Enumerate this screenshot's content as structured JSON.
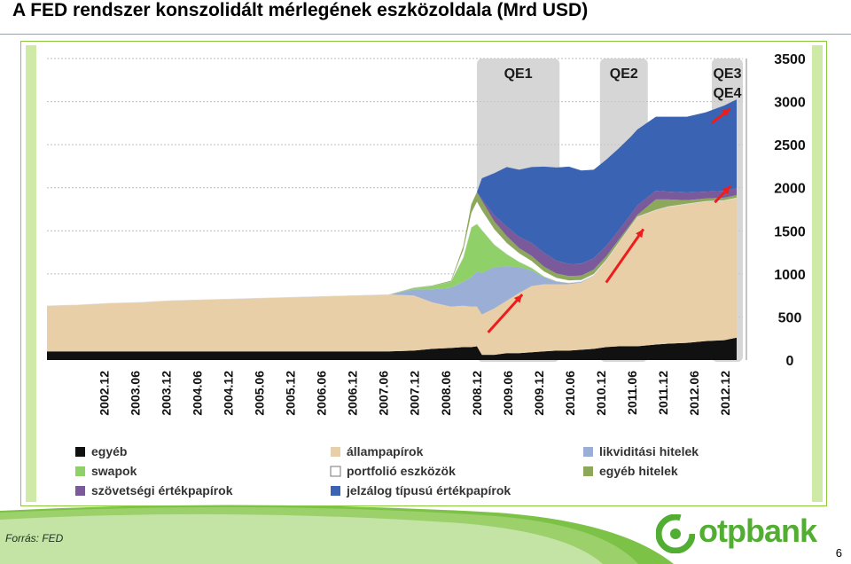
{
  "slide": {
    "title": "A FED rendszer konszolidált mérlegének eszközoldala (Mrd USD)",
    "source": "Forrás: FED",
    "page_number": "6",
    "logo_text": "otpbank"
  },
  "colors": {
    "accent_green": "#52ae32",
    "frame_green": "#8dc63f",
    "qe_band": "#c8c8c8",
    "arrow": "#ee1c1c"
  },
  "chart_data": {
    "type": "area",
    "stacked": true,
    "y_axis_side": "right",
    "ylim": [
      0,
      3500
    ],
    "yticks": [
      0,
      500,
      1000,
      1500,
      2000,
      2500,
      3000,
      3500
    ],
    "x_range": [
      2002.0,
      2013.2
    ],
    "xtick_labels": [
      "2002.12",
      "2003.06",
      "2003.12",
      "2004.06",
      "2004.12",
      "2005.06",
      "2005.12",
      "2006.06",
      "2006.12",
      "2007.06",
      "2007.12",
      "2008.06",
      "2008.12",
      "2009.06",
      "2009.12",
      "2010.06",
      "2010.12",
      "2011.06",
      "2011.12",
      "2012.06",
      "2012.12"
    ],
    "xticks": [
      2002.917,
      2003.417,
      2003.917,
      2004.417,
      2004.917,
      2005.417,
      2005.917,
      2006.417,
      2006.917,
      2007.417,
      2007.917,
      2008.417,
      2008.917,
      2009.417,
      2009.917,
      2010.417,
      2010.917,
      2011.417,
      2011.917,
      2012.417,
      2012.917
    ],
    "x": [
      2002.0,
      2002.5,
      2003.0,
      2003.5,
      2004.0,
      2004.5,
      2005.0,
      2005.5,
      2006.0,
      2006.5,
      2007.0,
      2007.5,
      2007.9,
      2008.2,
      2008.5,
      2008.7,
      2008.83,
      2008.92,
      2009.0,
      2009.2,
      2009.4,
      2009.6,
      2009.8,
      2010.0,
      2010.2,
      2010.4,
      2010.6,
      2010.8,
      2011.0,
      2011.2,
      2011.4,
      2011.5,
      2011.8,
      2012.0,
      2012.3,
      2012.6,
      2012.9,
      2013.1
    ],
    "series": [
      {
        "name": "egyéb",
        "color": "#111111",
        "values": [
          100,
          100,
          100,
          100,
          100,
          100,
          100,
          100,
          100,
          100,
          100,
          100,
          110,
          130,
          140,
          150,
          150,
          160,
          60,
          60,
          80,
          80,
          90,
          100,
          110,
          110,
          120,
          130,
          150,
          160,
          160,
          160,
          180,
          190,
          200,
          220,
          230,
          260
        ]
      },
      {
        "name": "állampapírok",
        "color": "#e8cfa8",
        "values": [
          530,
          540,
          560,
          570,
          590,
          600,
          610,
          620,
          630,
          640,
          650,
          660,
          640,
          540,
          480,
          480,
          470,
          460,
          470,
          540,
          610,
          700,
          770,
          780,
          770,
          770,
          780,
          850,
          1000,
          1200,
          1400,
          1500,
          1560,
          1590,
          1610,
          1620,
          1620,
          1620
        ]
      },
      {
        "name": "likviditási hitelek",
        "color": "#9aaed6",
        "values": [
          0,
          0,
          0,
          0,
          0,
          0,
          0,
          0,
          0,
          0,
          0,
          0,
          70,
          150,
          220,
          280,
          340,
          410,
          480,
          480,
          400,
          300,
          180,
          80,
          30,
          15,
          10,
          5,
          5,
          0,
          0,
          0,
          0,
          0,
          0,
          0,
          0,
          0
        ]
      },
      {
        "name": "swapok",
        "color": "#8fd168",
        "values": [
          0,
          0,
          0,
          0,
          0,
          0,
          0,
          0,
          0,
          0,
          0,
          0,
          20,
          40,
          70,
          280,
          580,
          550,
          500,
          260,
          140,
          60,
          30,
          10,
          5,
          0,
          0,
          0,
          0,
          0,
          0,
          0,
          0,
          0,
          0,
          0,
          0,
          0
        ]
      },
      {
        "name": "portfolió eszközök",
        "color": "#ffffff",
        "values": [
          0,
          0,
          0,
          0,
          0,
          0,
          0,
          0,
          0,
          0,
          0,
          0,
          0,
          0,
          0,
          90,
          170,
          260,
          230,
          180,
          130,
          100,
          80,
          60,
          40,
          30,
          20,
          15,
          10,
          5,
          5,
          5,
          5,
          5,
          5,
          5,
          5,
          5
        ]
      },
      {
        "name": "egyéb hitelek",
        "color": "#8da85a",
        "values": [
          0,
          0,
          0,
          0,
          0,
          0,
          0,
          0,
          0,
          0,
          0,
          0,
          0,
          5,
          10,
          40,
          100,
          110,
          110,
          90,
          80,
          60,
          60,
          55,
          50,
          50,
          50,
          50,
          40,
          30,
          20,
          20,
          120,
          80,
          40,
          30,
          30,
          30
        ]
      },
      {
        "name": "szövetségi értékpapírok",
        "color": "#7a5a9a",
        "values": [
          0,
          0,
          0,
          0,
          0,
          0,
          0,
          0,
          0,
          0,
          0,
          0,
          0,
          0,
          0,
          0,
          0,
          0,
          20,
          70,
          110,
          130,
          150,
          160,
          150,
          140,
          140,
          130,
          120,
          110,
          110,
          110,
          100,
          90,
          90,
          80,
          80,
          80
        ]
      },
      {
        "name": "jelzálog típusú értékpapírok",
        "color": "#3b63b3",
        "values": [
          0,
          0,
          0,
          0,
          0,
          0,
          0,
          0,
          0,
          0,
          0,
          0,
          0,
          0,
          0,
          0,
          0,
          0,
          240,
          490,
          690,
          780,
          880,
          1000,
          1080,
          1130,
          1080,
          1030,
          1000,
          950,
          900,
          880,
          860,
          870,
          880,
          920,
          990,
          1030
        ]
      }
    ],
    "bands": [
      {
        "label": "QE1",
        "from": 2008.92,
        "to": 2010.25
      },
      {
        "label": "QE2",
        "from": 2010.9,
        "to": 2011.67
      },
      {
        "label": "QE3\nQE4",
        "from": 2012.7,
        "to": 2013.2
      }
    ],
    "legend": {
      "placement": "bottom",
      "items": [
        "egyéb",
        "állampapírok",
        "likviditási hitelek",
        "swapok",
        "portfolió eszközök",
        "egyéb hitelek",
        "szövetségi értékpapírok",
        "jelzálog típusú értékpapírok"
      ]
    },
    "grid": true
  }
}
